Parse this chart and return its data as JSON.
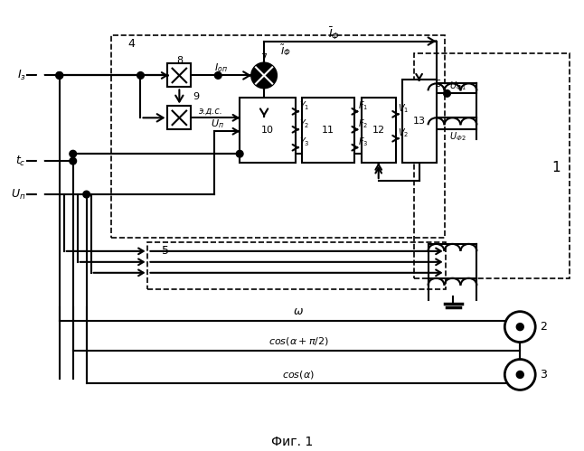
{
  "title": "Фиг. 1",
  "bg": "#ffffff",
  "fw": 6.46,
  "fh": 4.99,
  "dpi": 100
}
